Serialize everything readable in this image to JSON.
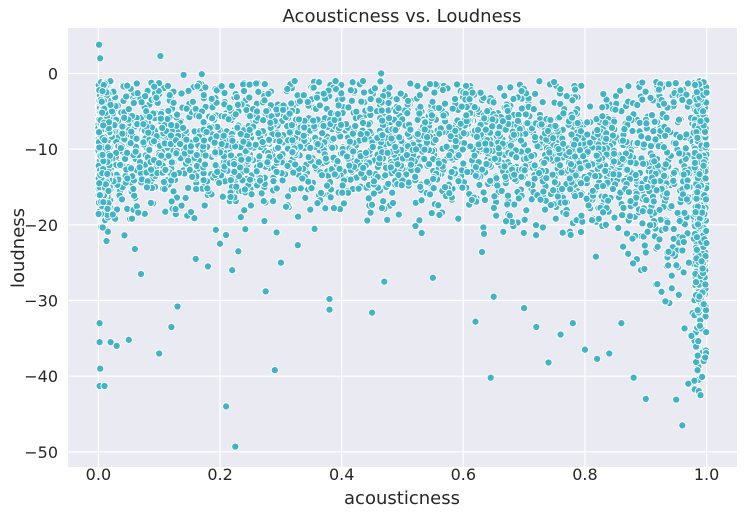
{
  "chart_data": {
    "type": "scatter",
    "title": "Acousticness vs. Loudness",
    "xlabel": "acousticness",
    "ylabel": "loudness",
    "xlim": [
      -0.05,
      1.05
    ],
    "ylim": [
      -52,
      6
    ],
    "xticks": [
      0.0,
      0.2,
      0.4,
      0.6,
      0.8,
      1.0
    ],
    "xtick_labels": [
      "0.0",
      "0.2",
      "0.4",
      "0.6",
      "0.8",
      "1.0"
    ],
    "yticks": [
      0,
      -10,
      -20,
      -30,
      -40,
      -50
    ],
    "ytick_labels": [
      "0",
      "−10",
      "−20",
      "−30",
      "−40",
      "−50"
    ],
    "grid": true,
    "background": "#eaeaf2",
    "point_color": "#42b3c7",
    "series": [
      {
        "values_note": "dense cloud of ~thousands of points; representative outliers listed",
        "points": [
          [
            0.001,
            3.8
          ],
          [
            0.003,
            2.0
          ],
          [
            0.102,
            2.3
          ],
          [
            0.002,
            -41.3
          ],
          [
            0.01,
            -41.3
          ],
          [
            0.003,
            -39.0
          ],
          [
            0.002,
            -35.5
          ],
          [
            0.002,
            -33.0
          ],
          [
            0.1,
            -37.0
          ],
          [
            0.05,
            -35.2
          ],
          [
            0.02,
            -35.5
          ],
          [
            0.03,
            -36.0
          ],
          [
            0.21,
            -44.0
          ],
          [
            0.225,
            -49.3
          ],
          [
            0.29,
            -39.2
          ],
          [
            0.12,
            -33.5
          ],
          [
            0.13,
            -30.8
          ],
          [
            0.38,
            -31.2
          ],
          [
            0.45,
            -31.6
          ],
          [
            0.645,
            -40.2
          ],
          [
            0.62,
            -32.8
          ],
          [
            0.74,
            -38.2
          ],
          [
            0.82,
            -37.7
          ],
          [
            0.88,
            -40.2
          ],
          [
            0.9,
            -43.0
          ],
          [
            0.96,
            -46.5
          ],
          [
            0.95,
            -43.1
          ],
          [
            0.99,
            -42.5
          ],
          [
            0.98,
            -40.6
          ],
          [
            0.97,
            -41.0
          ],
          [
            0.465,
            0.0
          ],
          [
            0.39,
            -1.0
          ],
          [
            0.435,
            -1.0
          ],
          [
            0.14,
            -0.2
          ],
          [
            0.17,
            -0.1
          ],
          [
            0.93,
            -4.0
          ],
          [
            0.96,
            -3.5
          ],
          [
            0.99,
            -6.3
          ],
          [
            0.77,
            -3.0
          ],
          [
            0.85,
            -4.8
          ],
          [
            0.22,
            -26.0
          ],
          [
            0.275,
            -28.8
          ],
          [
            0.38,
            -29.8
          ],
          [
            0.2,
            -22.5
          ],
          [
            0.06,
            -23.2
          ],
          [
            0.07,
            -26.5
          ],
          [
            0.16,
            -24.5
          ],
          [
            0.18,
            -25.5
          ],
          [
            0.23,
            -23.5
          ],
          [
            0.3,
            -25.0
          ],
          [
            0.47,
            -27.5
          ],
          [
            0.55,
            -27.0
          ],
          [
            0.65,
            -29.5
          ],
          [
            0.7,
            -31.0
          ],
          [
            0.72,
            -33.5
          ],
          [
            0.76,
            -34.5
          ],
          [
            0.78,
            -33.0
          ],
          [
            0.8,
            -36.5
          ],
          [
            0.84,
            -37.0
          ],
          [
            0.86,
            -33.0
          ]
        ]
      }
    ]
  }
}
